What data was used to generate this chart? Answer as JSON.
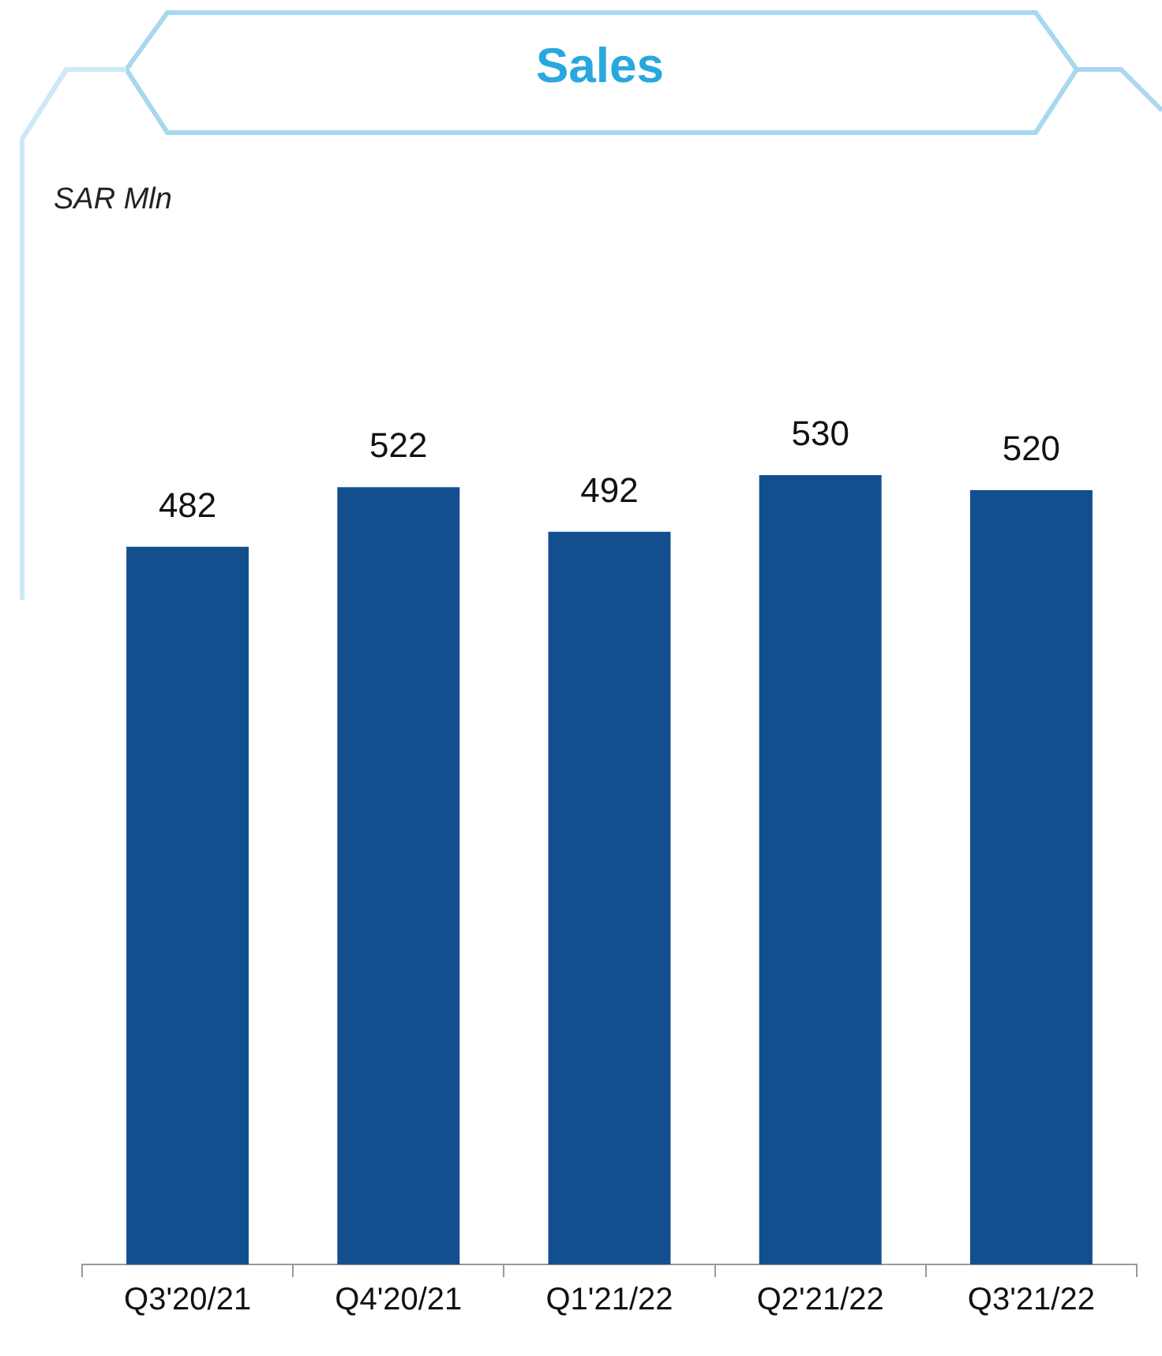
{
  "chart_data": {
    "type": "bar",
    "title": "Sales",
    "annotations": [
      "SAR Mln"
    ],
    "categories": [
      "Q3'20/21",
      "Q4'20/21",
      "Q1'21/22",
      "Q2'21/22",
      "Q3'21/22"
    ],
    "values": [
      482,
      522,
      492,
      530,
      520
    ],
    "color": "#134f8f",
    "data_labels": true,
    "grid": false,
    "legend": false
  }
}
